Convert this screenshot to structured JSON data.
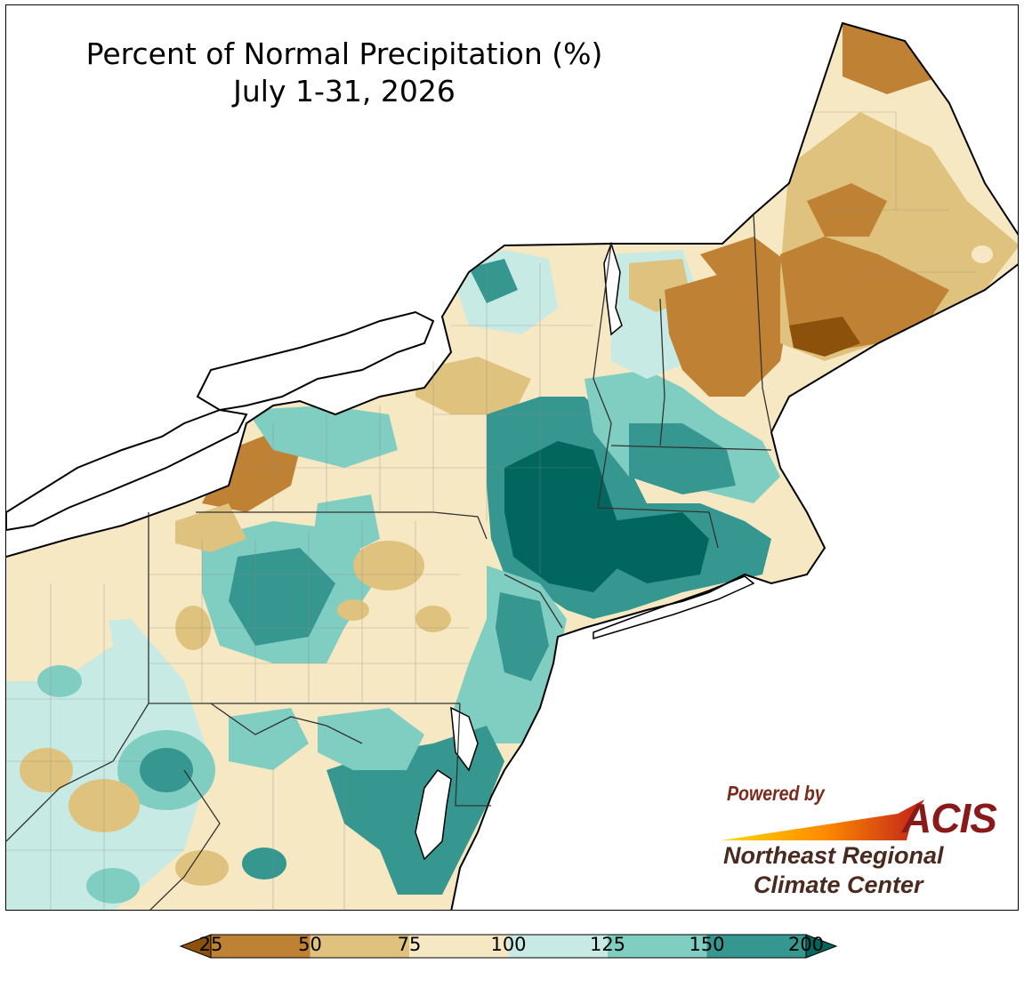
{
  "title": {
    "line1": "Percent of Normal Precipitation (%)",
    "line2": "July 1-31, 2026"
  },
  "credit": {
    "powered_by": "Powered by",
    "acis": "ACIS",
    "org_line1": "Northeast Regional",
    "org_line2": "Climate Center"
  },
  "legend": {
    "bins": [
      {
        "from": 25,
        "to": 50,
        "color": "#bf8133"
      },
      {
        "from": 50,
        "to": 75,
        "color": "#dfc27d"
      },
      {
        "from": 75,
        "to": 100,
        "color": "#f6e8c3"
      },
      {
        "from": 100,
        "to": 125,
        "color": "#c7eae5"
      },
      {
        "from": 125,
        "to": 150,
        "color": "#80cdc1"
      },
      {
        "from": 150,
        "to": 200,
        "color": "#35978f"
      }
    ],
    "under_color": "#8c510a",
    "over_color": "#01665e",
    "ticks": [
      "25",
      "50",
      "75",
      "100",
      "125",
      "150",
      "200"
    ]
  },
  "map": {
    "region": "Northeast United States",
    "water_color": "#ffffff",
    "boundary_color": "#000000",
    "county_line_color": "#8a8a8a"
  }
}
